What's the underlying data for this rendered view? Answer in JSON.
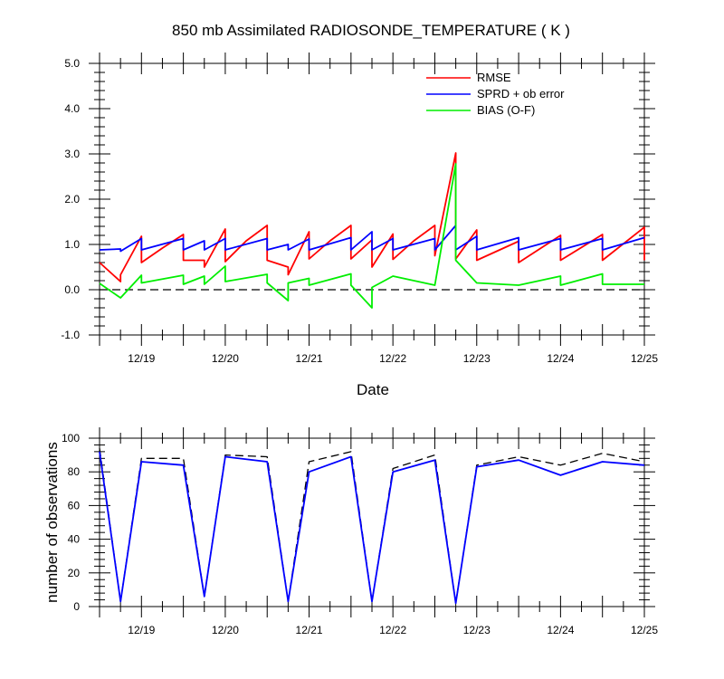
{
  "chart_data": [
    {
      "type": "line",
      "title": "850 mb Assimilated RADIOSONDE_TEMPERATURE ( K )",
      "xlabel": "Date",
      "ylabel": "",
      "xlim": [
        18.5,
        25.0
      ],
      "ylim": [
        -1.0,
        5.0
      ],
      "ytick_labels": [
        "-1.0",
        "0.0",
        "1.0",
        "2.0",
        "3.0",
        "4.0",
        "5.0"
      ],
      "ytick_values": [
        -1,
        0,
        1,
        2,
        3,
        4,
        5
      ],
      "xtick_labels": [
        "12/19",
        "12/20",
        "12/21",
        "12/22",
        "12/23",
        "12/24",
        "12/25"
      ],
      "xtick_values": [
        19,
        20,
        21,
        22,
        23,
        24,
        25
      ],
      "reference_line": 0,
      "legend": [
        "RMSE",
        "SPRD + ob error",
        "BIAS (O-F)"
      ],
      "series": [
        {
          "name": "RMSE",
          "color": "#ff0000",
          "x": [
            18.5,
            18.75,
            18.75,
            19.0,
            19.0,
            19.25,
            19.5,
            19.5,
            19.75,
            19.75,
            20.0,
            20.0,
            20.25,
            20.5,
            20.5,
            20.75,
            20.75,
            21.0,
            21.0,
            21.25,
            21.5,
            21.5,
            21.75,
            21.75,
            22.0,
            22.0,
            22.25,
            22.5,
            22.5,
            22.75,
            22.75,
            23.0,
            23.0,
            23.5,
            23.5,
            24.0,
            24.0,
            24.5,
            24.5,
            25.0,
            25.0
          ],
          "values": [
            0.6,
            0.18,
            0.33,
            1.18,
            0.6,
            0.92,
            1.22,
            0.65,
            0.65,
            0.5,
            1.34,
            0.62,
            1.08,
            1.42,
            0.65,
            0.5,
            0.33,
            1.28,
            0.68,
            1.08,
            1.42,
            0.68,
            1.1,
            0.5,
            1.23,
            0.67,
            1.08,
            1.42,
            0.75,
            3.02,
            0.68,
            1.32,
            0.65,
            1.07,
            0.6,
            1.2,
            0.65,
            1.22,
            0.65,
            1.38,
            0.65
          ]
        },
        {
          "name": "SPRD + ob error",
          "color": "#0000ff",
          "x": [
            18.5,
            18.75,
            18.75,
            19.0,
            19.0,
            19.5,
            19.5,
            19.75,
            19.75,
            20.0,
            20.0,
            20.5,
            20.5,
            20.75,
            20.75,
            21.0,
            21.0,
            21.5,
            21.5,
            21.75,
            21.75,
            22.0,
            22.0,
            22.5,
            22.5,
            22.75,
            22.75,
            23.0,
            23.0,
            23.5,
            23.5,
            24.0,
            24.0,
            24.5,
            24.5,
            25.0
          ],
          "values": [
            0.88,
            0.9,
            0.85,
            1.13,
            0.88,
            1.13,
            0.88,
            1.08,
            0.88,
            1.13,
            0.88,
            1.13,
            0.88,
            1.0,
            0.88,
            1.12,
            0.88,
            1.15,
            0.88,
            1.28,
            0.88,
            1.13,
            0.88,
            1.13,
            0.88,
            1.42,
            0.88,
            1.18,
            0.88,
            1.15,
            0.88,
            1.13,
            0.88,
            1.13,
            0.88,
            1.15
          ]
        },
        {
          "name": "BIAS (O-F)",
          "color": "#00ee00",
          "x": [
            18.5,
            18.75,
            19.0,
            19.0,
            19.5,
            19.5,
            19.75,
            19.75,
            20.0,
            20.0,
            20.5,
            20.5,
            20.75,
            20.75,
            21.0,
            21.0,
            21.5,
            21.5,
            21.75,
            21.75,
            22.0,
            22.0,
            22.5,
            22.5,
            22.75,
            22.75,
            23.0,
            23.0,
            23.5,
            24.0,
            24.0,
            24.5,
            24.5,
            25.0
          ],
          "values": [
            0.14,
            -0.18,
            0.32,
            0.15,
            0.32,
            0.12,
            0.3,
            0.12,
            0.52,
            0.18,
            0.34,
            0.15,
            -0.24,
            0.15,
            0.25,
            0.1,
            0.35,
            0.1,
            -0.4,
            0.05,
            0.3,
            0.3,
            0.1,
            0.1,
            2.78,
            0.65,
            0.15,
            0.15,
            0.1,
            0.3,
            0.1,
            0.35,
            0.12,
            0.12
          ]
        }
      ]
    },
    {
      "type": "line",
      "title": "",
      "xlabel": "",
      "ylabel": "number of observations",
      "xlim": [
        18.5,
        25.0
      ],
      "ylim": [
        0,
        100
      ],
      "ytick_labels": [
        "0",
        "20",
        "40",
        "60",
        "80",
        "100"
      ],
      "ytick_values": [
        0,
        20,
        40,
        60,
        80,
        100
      ],
      "xtick_labels": [
        "12/19",
        "12/20",
        "12/21",
        "12/22",
        "12/23",
        "12/24",
        "12/25"
      ],
      "xtick_values": [
        19,
        20,
        21,
        22,
        23,
        24,
        25
      ],
      "series": [
        {
          "name": "dashed",
          "color": "#000000",
          "dash": true,
          "x": [
            18.5,
            18.75,
            19.0,
            19.5,
            19.75,
            20.0,
            20.5,
            20.75,
            21.0,
            21.5,
            21.75,
            22.0,
            22.5,
            22.75,
            23.0,
            23.5,
            24.0,
            24.5,
            25.0
          ],
          "values": [
            94,
            3,
            88,
            88,
            6,
            90,
            89,
            3,
            86,
            92,
            3,
            82,
            90,
            2,
            84,
            89,
            84,
            91,
            86
          ]
        },
        {
          "name": "solid",
          "color": "#0000ff",
          "dash": false,
          "x": [
            18.5,
            18.75,
            19.0,
            19.5,
            19.75,
            20.0,
            20.5,
            20.75,
            21.0,
            21.5,
            21.75,
            22.0,
            22.5,
            22.75,
            23.0,
            23.5,
            24.0,
            24.5,
            25.0
          ],
          "values": [
            92,
            3,
            86,
            84,
            6,
            89,
            86,
            3,
            80,
            89,
            3,
            80,
            87,
            2,
            83,
            87,
            78,
            86,
            84
          ]
        }
      ]
    }
  ]
}
